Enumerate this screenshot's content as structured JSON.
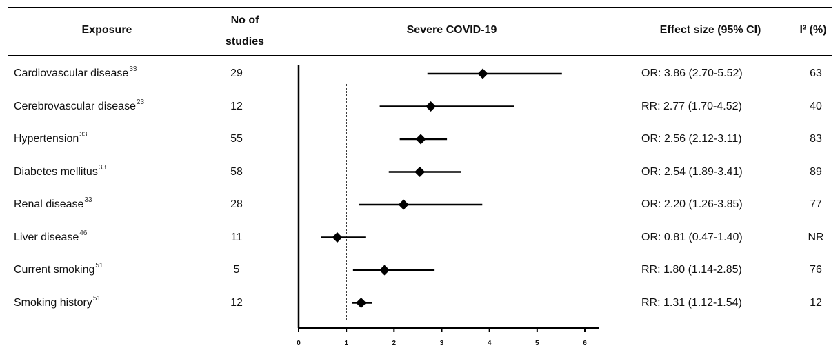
{
  "headers": {
    "exposure": "Exposure",
    "studies_line1": "No of",
    "studies_line2": "studies",
    "outcome": "Severe COVID-19",
    "effect": "Effect size (95% CI)",
    "i2": "I² (%)"
  },
  "rows": [
    {
      "exposure": "Cardiovascular disease",
      "ref": "33",
      "studies": "29",
      "effect": "OR: 3.86 (2.70-5.52)",
      "i2": "63"
    },
    {
      "exposure": "Cerebrovascular disease",
      "ref": "23",
      "studies": "12",
      "effect": "RR: 2.77 (1.70-4.52)",
      "i2": "40"
    },
    {
      "exposure": "Hypertension",
      "ref": "33",
      "studies": "55",
      "effect": "OR: 2.56 (2.12-3.11)",
      "i2": "83"
    },
    {
      "exposure": "Diabetes mellitus",
      "ref": "33",
      "studies": "58",
      "effect": "OR: 2.54 (1.89-3.41)",
      "i2": "89"
    },
    {
      "exposure": "Renal disease",
      "ref": "33",
      "studies": "28",
      "effect": "OR: 2.20 (1.26-3.85)",
      "i2": "77"
    },
    {
      "exposure": "Liver disease",
      "ref": "46",
      "studies": "11",
      "effect": "OR: 0.81 (0.47-1.40)",
      "i2": "NR"
    },
    {
      "exposure": "Current smoking",
      "ref": "51",
      "studies": "5",
      "effect": "RR: 1.80 (1.14-2.85)",
      "i2": "76"
    },
    {
      "exposure": "Smoking history",
      "ref": "51",
      "studies": "12",
      "effect": "RR: 1.31 (1.12-1.54)",
      "i2": "12"
    }
  ],
  "chart_data": {
    "type": "forest",
    "xlim": [
      0,
      6
    ],
    "xticks": [
      "0",
      "1",
      "2",
      "3",
      "4",
      "5",
      "6"
    ],
    "reference_line": 1,
    "points": [
      {
        "estimate": 3.86,
        "lower": 2.7,
        "upper": 5.52
      },
      {
        "estimate": 2.77,
        "lower": 1.7,
        "upper": 4.52
      },
      {
        "estimate": 2.56,
        "lower": 2.12,
        "upper": 3.11
      },
      {
        "estimate": 2.54,
        "lower": 1.89,
        "upper": 3.41
      },
      {
        "estimate": 2.2,
        "lower": 1.26,
        "upper": 3.85
      },
      {
        "estimate": 0.81,
        "lower": 0.47,
        "upper": 1.4
      },
      {
        "estimate": 1.8,
        "lower": 1.14,
        "upper": 2.85
      },
      {
        "estimate": 1.31,
        "lower": 1.12,
        "upper": 1.54
      }
    ]
  }
}
